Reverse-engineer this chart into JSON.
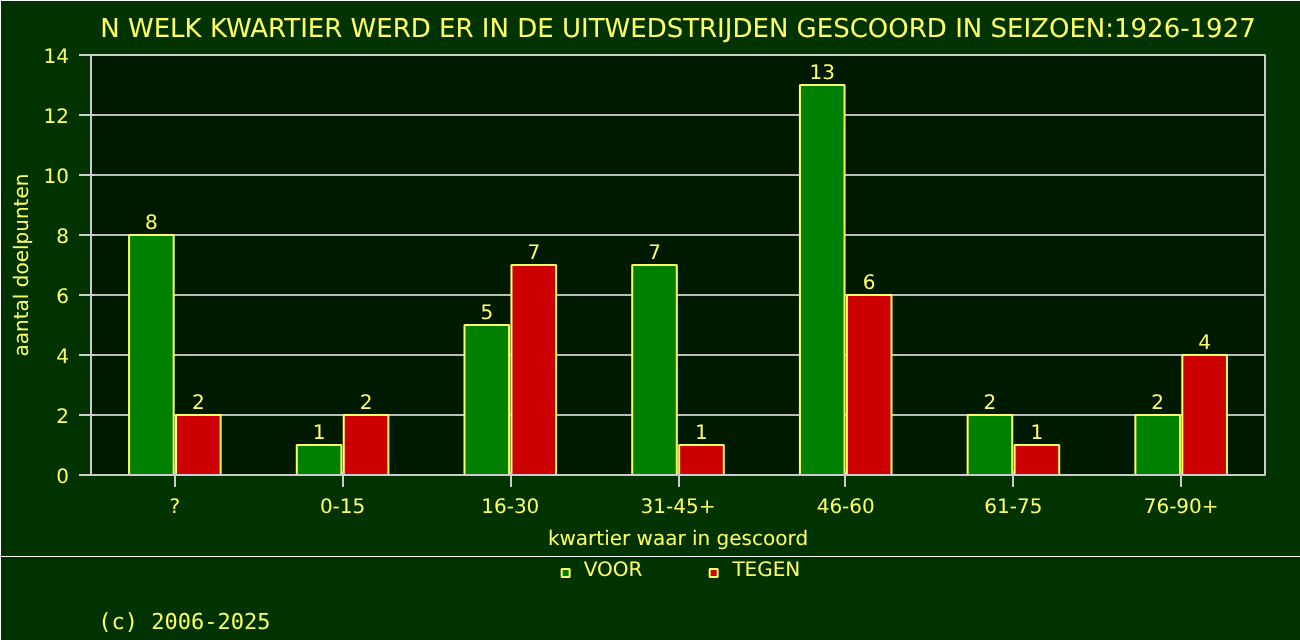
{
  "chart_data": {
    "type": "bar",
    "title": "N WELK KWARTIER WERD ER IN DE UITWEDSTRIJDEN GESCOORD IN SEIZOEN:1926-1927",
    "xlabel": "kwartier waar in gescoord",
    "ylabel": "aantal doelpunten",
    "categories": [
      "?",
      "0-15",
      "16-30",
      "31-45+",
      "46-60",
      "61-75",
      "76-90+"
    ],
    "series": [
      {
        "name": "VOOR",
        "color": "#008000",
        "values": [
          8,
          1,
          5,
          7,
          13,
          2,
          2
        ]
      },
      {
        "name": "TEGEN",
        "color": "#cc0000",
        "values": [
          2,
          2,
          7,
          1,
          6,
          1,
          4
        ]
      }
    ],
    "ylim": [
      0,
      14
    ],
    "yticks": [
      0,
      2,
      4,
      6,
      8,
      10,
      12,
      14
    ],
    "grid": "y",
    "legend": "bottom",
    "data_labels": true,
    "annotations": [
      "(c) 2006-2025"
    ]
  }
}
